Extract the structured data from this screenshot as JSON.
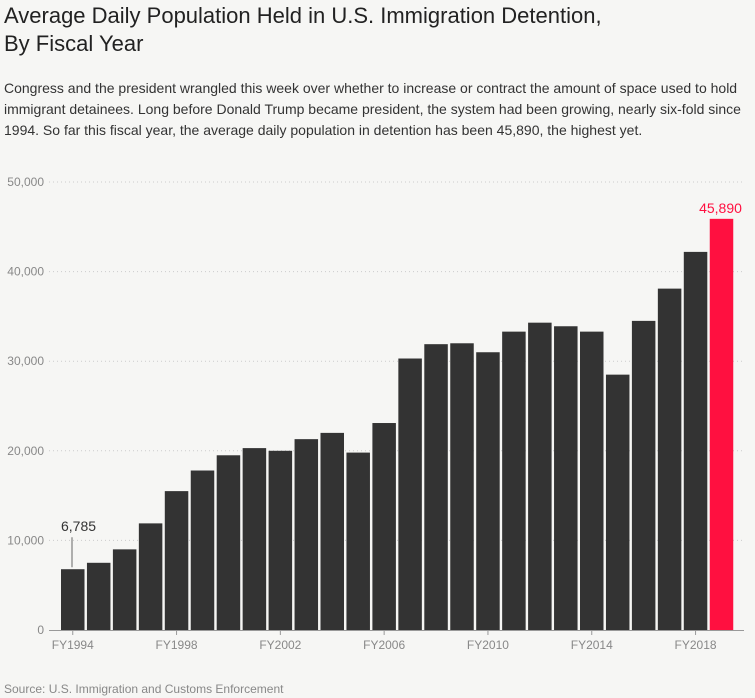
{
  "title_line1": "Average Daily Population Held in U.S. Immigration Detention,",
  "title_line2": "By Fiscal Year",
  "description": "Congress and the president wrangled this week over whether to increase or contract the amount of space used to hold immigrant detainees. Long before Donald Trump became president, the system had been growing, nearly six-fold since 1994. So far this fiscal year, the average daily population in detention has been 45,890, the highest yet.",
  "source": "Source: U.S. Immigration and Customs Enforcement",
  "colors": {
    "bar": "#333333",
    "highlight": "#ff1040",
    "grid": "#cccccc"
  },
  "chart_data": {
    "type": "bar",
    "categories": [
      "FY1994",
      "FY1995",
      "FY1996",
      "FY1997",
      "FY1998",
      "FY1999",
      "FY2000",
      "FY2001",
      "FY2002",
      "FY2003",
      "FY2004",
      "FY2005",
      "FY2006",
      "FY2007",
      "FY2008",
      "FY2009",
      "FY2010",
      "FY2011",
      "FY2012",
      "FY2013",
      "FY2014",
      "FY2015",
      "FY2016",
      "FY2017",
      "FY2018",
      "FY2019"
    ],
    "values": [
      6785,
      7500,
      9000,
      11900,
      15500,
      17800,
      19500,
      20300,
      20000,
      21300,
      22000,
      19800,
      23100,
      30300,
      31900,
      32000,
      31000,
      33300,
      34300,
      33900,
      33300,
      28500,
      34500,
      38100,
      42200,
      45890
    ],
    "tick_labels": [
      "FY1994",
      "FY1998",
      "FY2002",
      "FY2006",
      "FY2010",
      "FY2014",
      "FY2018"
    ],
    "yticks": [
      0,
      10000,
      20000,
      30000,
      40000,
      50000
    ],
    "ytick_labels": [
      "0",
      "10,000",
      "20,000",
      "30,000",
      "40,000",
      "50,000"
    ],
    "ylim": [
      0,
      50000
    ],
    "annotations": [
      {
        "category": "FY1994",
        "text": "6,785"
      },
      {
        "category": "FY2019",
        "text": "45,890",
        "highlight": true
      }
    ],
    "grid": true
  }
}
